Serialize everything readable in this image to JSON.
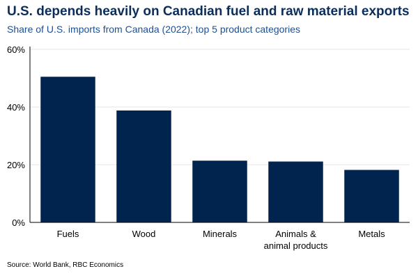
{
  "title": "U.S. depends heavily on Canadian fuel and raw material exports",
  "subtitle": "Share of U.S. imports from Canada (2022); top 5 product categories",
  "source": "Source: World Bank, RBC Economics",
  "colors": {
    "bar": "#00244d",
    "grid": "#e6e6e6",
    "axis": "#000000"
  },
  "chart_data": {
    "type": "bar",
    "categories": [
      [
        "Fuels"
      ],
      [
        "Wood"
      ],
      [
        "Minerals"
      ],
      [
        "Animals &",
        "animal products"
      ],
      [
        "Metals"
      ]
    ],
    "values": [
      50.5,
      38.8,
      21.4,
      21.1,
      18.2
    ],
    "ylim": [
      0,
      60
    ],
    "yticks": [
      0,
      20,
      40,
      60
    ],
    "ytick_labels": [
      "0%",
      "20%",
      "40%",
      "60%"
    ],
    "grid": true
  }
}
